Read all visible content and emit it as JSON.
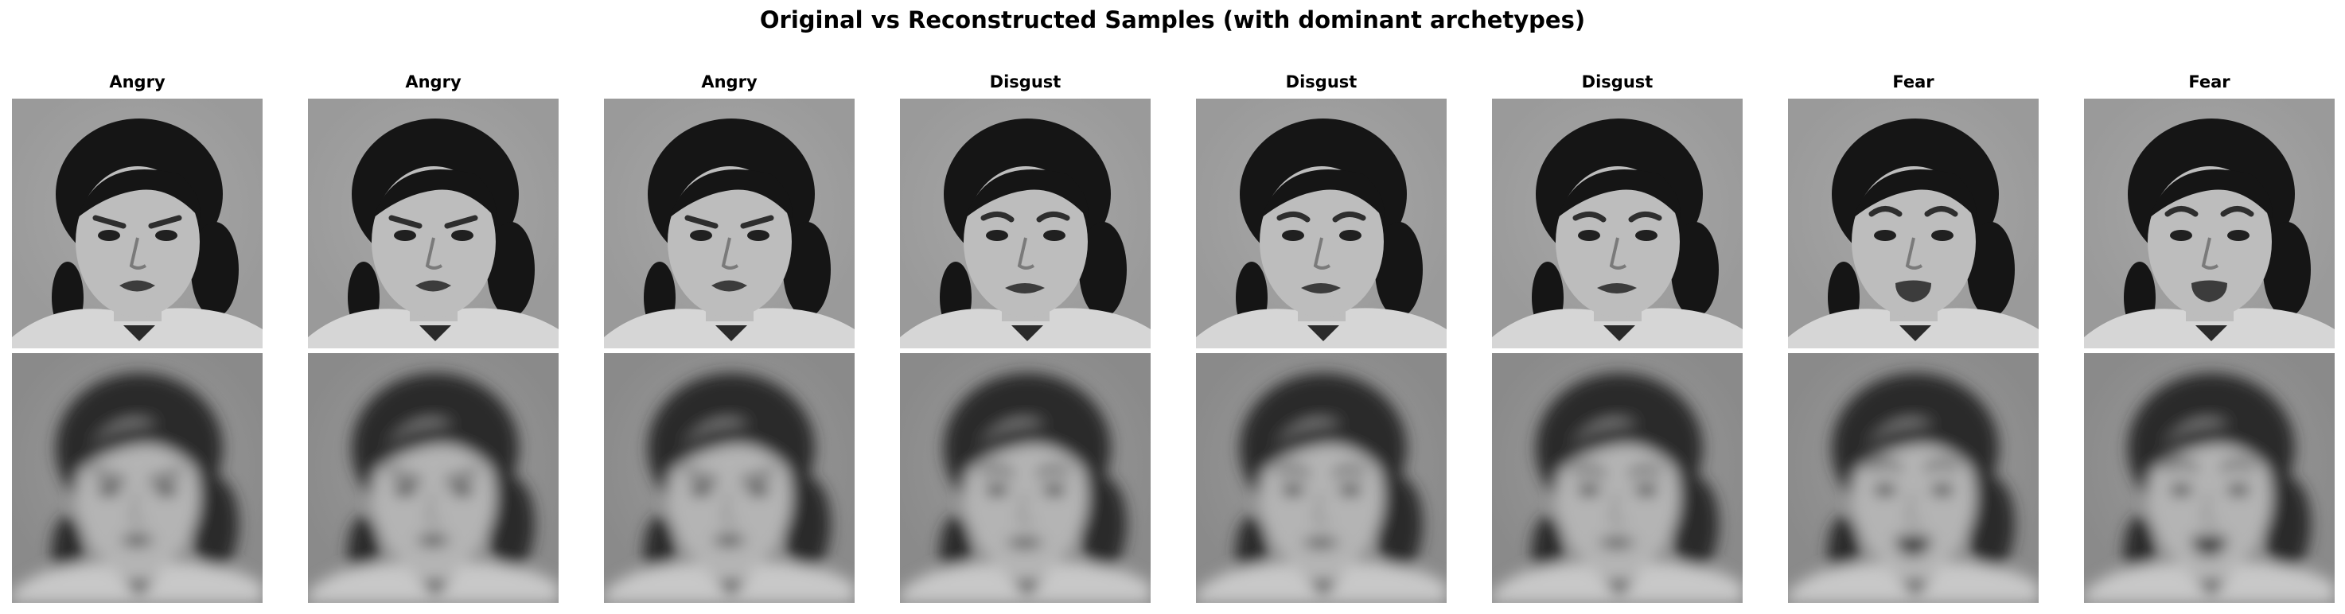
{
  "figure": {
    "title": "Original vs Reconstructed Samples (with dominant archetypes)"
  },
  "samples": [
    {
      "label": "Angry"
    },
    {
      "label": "Angry"
    },
    {
      "label": "Angry"
    },
    {
      "label": "Disgust"
    },
    {
      "label": "Disgust"
    },
    {
      "label": "Disgust"
    },
    {
      "label": "Fear"
    },
    {
      "label": "Fear"
    }
  ],
  "rows": [
    "original",
    "reconstructed"
  ]
}
